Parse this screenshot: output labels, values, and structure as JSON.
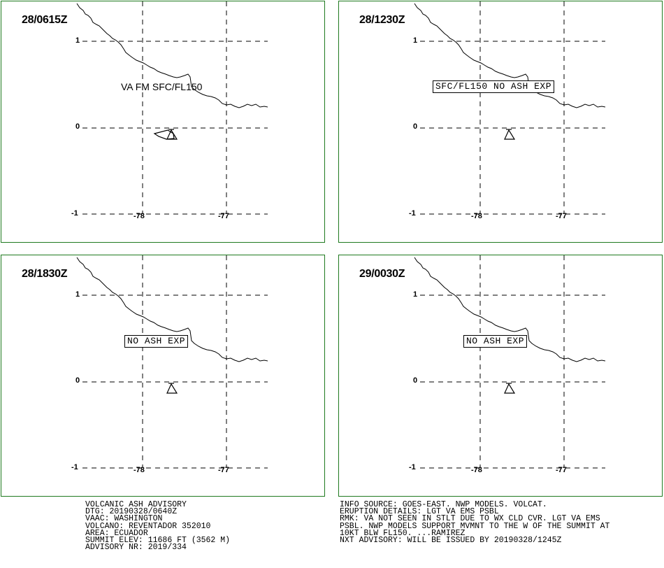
{
  "panels": [
    {
      "title": "28/0615Z",
      "label_type": "text",
      "label": "VA FM SFC/FL150"
    },
    {
      "title": "28/1230Z",
      "label_type": "box",
      "label": "SFC/FL150 NO ASH EXP"
    },
    {
      "title": "28/1830Z",
      "label_type": "box",
      "label": "NO ASH EXP"
    },
    {
      "title": "29/0030Z",
      "label_type": "box",
      "label": "NO ASH EXP"
    }
  ],
  "axes": {
    "lat_ticks": [
      "1",
      "0",
      "-1"
    ],
    "lon_ticks": [
      "-78",
      "-77"
    ]
  },
  "advisory_left": [
    "VOLCANIC ASH ADVISORY",
    "DTG: 20190328/0640Z",
    "VAAC: WASHINGTON",
    "VOLCANO: REVENTADOR 352010",
    "AREA: ECUADOR",
    "SUMMIT ELEV: 11686 FT (3562 M)",
    "ADVISORY NR: 2019/334"
  ],
  "advisory_right": [
    "INFO SOURCE: GOES-EAST. NWP MODELS. VOLCAT.",
    "ERUPTION DETAILS: LGT VA EMS PSBL",
    "RMK: VA NOT SEEN IN STLT DUE TO WX CLD CVR. LGT VA EMS",
    "PSBL. NWP MODELS SUPPORT MVMNT TO THE W OF THE SUMMIT AT",
    "10KT BLW FL150. ...RAMIREZ",
    "NXT ADVISORY: WILL BE ISSUED BY 20190328/1245Z"
  ],
  "colors": {
    "panel_border": "#1f7a1f",
    "lines": "#000000"
  },
  "icons": {
    "volcano": "volcano-icon"
  }
}
